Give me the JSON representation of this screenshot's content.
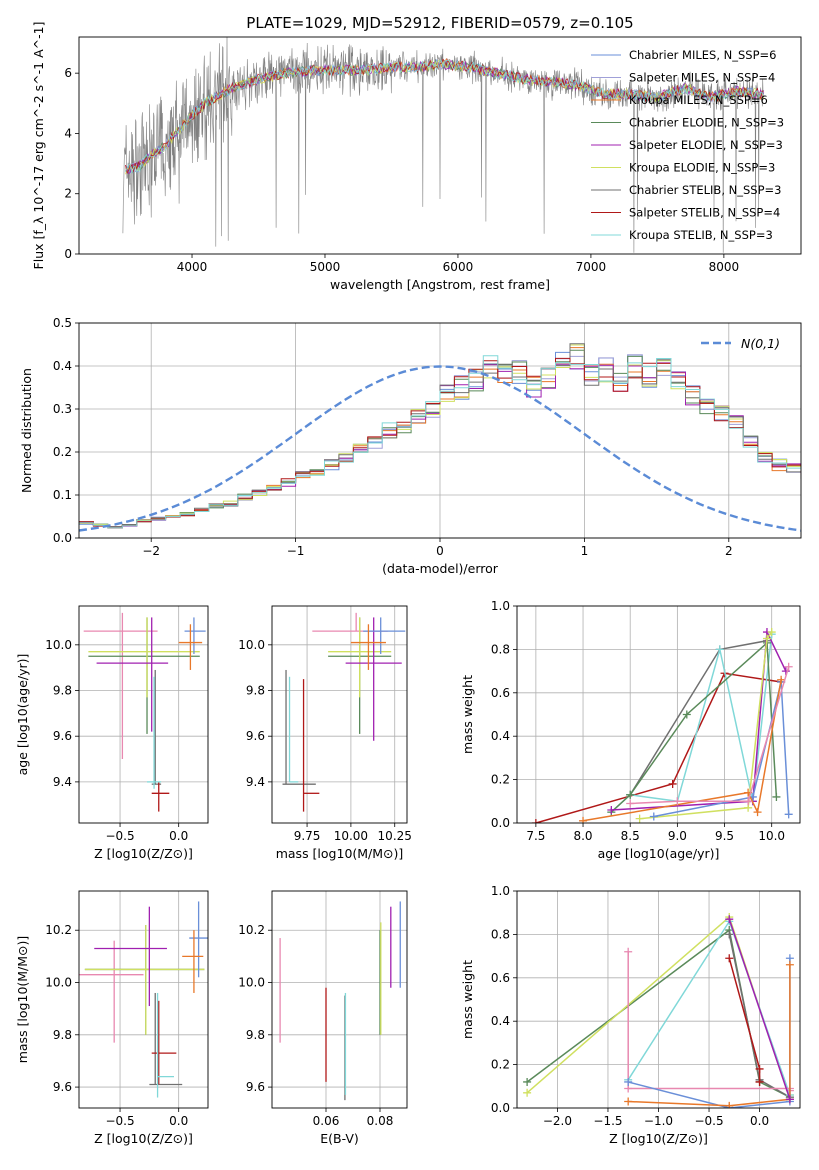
{
  "figure_title": "PLATE=1029, MJD=52912, FIBERID=0579, z=0.105",
  "colors": {
    "chabrier_miles": "#6a8fd8",
    "salpeter_miles": "#a0a0d8",
    "kroupa_miles": "#e8782a",
    "chabrier_elodie": "#5a8a5a",
    "salpeter_elodie": "#a020b0",
    "kroupa_elodie": "#d0e060",
    "chabrier_stelib": "#707070",
    "salpeter_stelib": "#b01818",
    "kroupa_stelib": "#80d8d8",
    "pink": "#e888b0",
    "normal": "#5b8bd6"
  },
  "chart_data": [
    {
      "id": "spectrum",
      "type": "line",
      "xlabel": "wavelength [Angstrom, rest frame]",
      "ylabel": "Flux [f_λ 10^-17 erg cm^-2 s^-1 A^-1]",
      "xlim": [
        3150,
        8580
      ],
      "ylim": [
        0,
        7.2
      ],
      "xticks": [
        4000,
        5000,
        6000,
        7000,
        8000
      ],
      "yticks": [
        0,
        2,
        4,
        6
      ],
      "grid": false,
      "legend_position": "right",
      "legend": [
        {
          "label": "Chabrier MILES, N_SSP=6",
          "color": "#6a8fd8"
        },
        {
          "label": "Salpeter MILES, N_SSP=4",
          "color": "#a0a0d8"
        },
        {
          "label": "Kroupa MILES, N_SSP=6",
          "color": "#e8782a"
        },
        {
          "label": "Chabrier ELODIE, N_SSP=3",
          "color": "#5a8a5a"
        },
        {
          "label": "Salpeter ELODIE, N_SSP=3",
          "color": "#a020b0"
        },
        {
          "label": "Kroupa ELODIE, N_SSP=3",
          "color": "#d0e060"
        },
        {
          "label": "Chabrier STELIB, N_SSP=3",
          "color": "#707070"
        },
        {
          "label": "Salpeter STELIB, N_SSP=4",
          "color": "#b01818"
        },
        {
          "label": "Kroupa STELIB, N_SSP=3",
          "color": "#80d8d8"
        }
      ],
      "model_continuum": {
        "x": [
          3500,
          3600,
          3700,
          3800,
          3900,
          4000,
          4100,
          4300,
          4500,
          4700,
          4900,
          5100,
          5300,
          5500,
          5700,
          5900,
          6100,
          6300,
          6500,
          6700,
          6900,
          7100,
          7300,
          7500,
          7700,
          7900,
          8100,
          8300
        ],
        "y": [
          2.8,
          2.9,
          3.3,
          3.6,
          4.1,
          4.6,
          5.0,
          5.5,
          5.8,
          6.0,
          6.1,
          6.1,
          6.1,
          6.2,
          6.2,
          6.3,
          6.2,
          6.0,
          5.8,
          5.7,
          5.6,
          5.3,
          5.3,
          5.2,
          5.5,
          5.2,
          5.4,
          5.3
        ]
      }
    },
    {
      "id": "residual_hist",
      "type": "histogram",
      "xlabel": "(data-model)/error",
      "ylabel": "Normed distribution",
      "xlim": [
        -2.5,
        2.5
      ],
      "ylim": [
        0,
        0.5
      ],
      "xticks": [
        -2,
        -1,
        0,
        1,
        2
      ],
      "yticks": [
        0.0,
        0.1,
        0.2,
        0.3,
        0.4,
        0.5
      ],
      "grid": true,
      "legend_position": "top-right",
      "legend": [
        {
          "label": "N(0,1)",
          "color": "#5b8bd6",
          "style": "dashed"
        }
      ],
      "bin_width": 0.1,
      "bin_start": -2.5,
      "base_values": [
        0.035,
        0.03,
        0.025,
        0.03,
        0.04,
        0.045,
        0.05,
        0.055,
        0.065,
        0.075,
        0.08,
        0.095,
        0.105,
        0.12,
        0.13,
        0.145,
        0.15,
        0.17,
        0.19,
        0.21,
        0.22,
        0.25,
        0.26,
        0.28,
        0.3,
        0.33,
        0.35,
        0.37,
        0.4,
        0.38,
        0.39,
        0.35,
        0.37,
        0.43,
        0.42,
        0.38,
        0.39,
        0.37,
        0.4,
        0.38,
        0.4,
        0.36,
        0.33,
        0.31,
        0.29,
        0.27,
        0.22,
        0.19,
        0.17,
        0.16,
        0.15,
        0.14,
        0.13,
        0.15,
        0.12,
        0.1,
        0.08,
        0.07,
        0.05,
        0.04,
        0.04,
        0.04
      ],
      "normal_curve": {
        "mean": 0,
        "sigma": 1
      }
    },
    {
      "id": "age_vs_Z",
      "type": "errorbar",
      "xlabel": "Z [log10(Z/Z⊙)]",
      "ylabel": "age  [log10(age/yr)]",
      "xlim": [
        -0.85,
        0.25
      ],
      "ylim": [
        9.22,
        10.17
      ],
      "xticks": [
        -0.5,
        0.0
      ],
      "yticks": [
        9.4,
        9.6,
        9.8,
        10.0
      ],
      "grid": true,
      "points": [
        {
          "color": "#707070",
          "x": -0.2,
          "y": 9.39,
          "xerr": [
            0.03,
            0.05
          ],
          "yerr": [
            0.0,
            0.5
          ]
        },
        {
          "color": "#b01818",
          "x": -0.17,
          "y": 9.35,
          "xerr": [
            0.06,
            0.09
          ],
          "yerr": [
            0.08,
            0.05
          ]
        },
        {
          "color": "#80d8d8",
          "x": -0.21,
          "y": 9.4,
          "xerr": [
            0.06,
            0.06
          ],
          "yerr": [
            0.03,
            0.46
          ]
        },
        {
          "color": "#e888b0",
          "x": -0.48,
          "y": 10.06,
          "xerr": [
            0.33,
            0.3
          ],
          "yerr": [
            0.56,
            0.08
          ]
        },
        {
          "color": "#5a8a5a",
          "x": -0.27,
          "y": 9.95,
          "xerr": [
            0.5,
            0.45
          ],
          "yerr": [
            0.34,
            0.17
          ]
        },
        {
          "color": "#d0e060",
          "x": -0.27,
          "y": 9.97,
          "xerr": [
            0.5,
            0.45
          ],
          "yerr": [
            0.2,
            0.15
          ]
        },
        {
          "color": "#a020b0",
          "x": -0.23,
          "y": 9.92,
          "xerr": [
            0.47,
            0.14
          ],
          "yerr": [
            0.3,
            0.2
          ]
        },
        {
          "color": "#6a8fd8",
          "x": 0.13,
          "y": 10.06,
          "xerr": [
            0.08,
            0.1
          ],
          "yerr": [
            0.1,
            0.06
          ]
        },
        {
          "color": "#e8782a",
          "x": 0.1,
          "y": 10.01,
          "xerr": [
            0.1,
            0.1
          ],
          "yerr": [
            0.12,
            0.08
          ]
        }
      ]
    },
    {
      "id": "age_vs_mass",
      "type": "errorbar",
      "xlabel": "mass [log10(M/M⊙)]",
      "ylabel": "",
      "xlim": [
        9.55,
        10.32
      ],
      "ylim": [
        9.22,
        10.17
      ],
      "xticks": [
        9.75,
        10.0,
        10.25
      ],
      "yticks": [
        9.4,
        9.6,
        9.8,
        10.0
      ],
      "grid": true,
      "points": [
        {
          "color": "#707070",
          "x": 9.63,
          "y": 9.39,
          "xerr": [
            0.02,
            0.17
          ],
          "yerr": [
            0.0,
            0.5
          ]
        },
        {
          "color": "#b01818",
          "x": 9.73,
          "y": 9.35,
          "xerr": [
            0.0,
            0.09
          ],
          "yerr": [
            0.08,
            0.5
          ]
        },
        {
          "color": "#80d8d8",
          "x": 9.65,
          "y": 9.4,
          "xerr": [
            0.0,
            0.05
          ],
          "yerr": [
            0.0,
            0.46
          ]
        },
        {
          "color": "#e888b0",
          "x": 10.03,
          "y": 10.06,
          "xerr": [
            0.25,
            0.18
          ],
          "yerr": [
            0.0,
            0.08
          ]
        },
        {
          "color": "#5a8a5a",
          "x": 10.05,
          "y": 9.95,
          "xerr": [
            0.18,
            0.18
          ],
          "yerr": [
            0.34,
            0.17
          ]
        },
        {
          "color": "#d0e060",
          "x": 10.05,
          "y": 9.97,
          "xerr": [
            0.18,
            0.18
          ],
          "yerr": [
            0.2,
            0.15
          ]
        },
        {
          "color": "#a020b0",
          "x": 10.13,
          "y": 9.92,
          "xerr": [
            0.16,
            0.16
          ],
          "yerr": [
            0.34,
            0.2
          ]
        },
        {
          "color": "#6a8fd8",
          "x": 10.17,
          "y": 10.06,
          "xerr": [
            0.1,
            0.14
          ],
          "yerr": [
            0.1,
            0.06
          ]
        },
        {
          "color": "#e8782a",
          "x": 10.1,
          "y": 10.01,
          "xerr": [
            0.1,
            0.1
          ],
          "yerr": [
            0.12,
            0.08
          ]
        }
      ]
    },
    {
      "id": "weight_vs_age",
      "type": "line",
      "xlabel": "age  [log10(age/yr)]",
      "ylabel": "mass weight",
      "xlim": [
        7.3,
        10.3
      ],
      "ylim": [
        0,
        1
      ],
      "xticks": [
        7.5,
        8.0,
        8.5,
        9.0,
        9.5,
        10.0
      ],
      "yticks": [
        0.0,
        0.2,
        0.4,
        0.6,
        0.8,
        1.0
      ],
      "grid": true,
      "series": [
        {
          "color": "#707070",
          "x": [
            8.5,
            9.45,
            9.95
          ],
          "y": [
            0.13,
            0.8,
            0.84
          ]
        },
        {
          "color": "#b01818",
          "x": [
            7.5,
            8.95,
            9.5,
            10.1
          ],
          "y": [
            0.0,
            0.18,
            0.69,
            0.65
          ]
        },
        {
          "color": "#80d8d8",
          "x": [
            8.3,
            8.5,
            9.0,
            9.45,
            9.8,
            10.0
          ],
          "y": [
            0.05,
            0.13,
            0.1,
            0.8,
            0.1,
            0.87
          ]
        },
        {
          "color": "#5a8a5a",
          "x": [
            8.3,
            8.5,
            9.1,
            9.95,
            10.05
          ],
          "y": [
            0.05,
            0.13,
            0.5,
            0.83,
            0.12
          ]
        },
        {
          "color": "#a020b0",
          "x": [
            8.3,
            9.8,
            9.95,
            10.15
          ],
          "y": [
            0.06,
            0.1,
            0.88,
            0.7
          ]
        },
        {
          "color": "#d0e060",
          "x": [
            8.6,
            9.75,
            9.95,
            10.0
          ],
          "y": [
            0.02,
            0.07,
            0.85,
            0.88
          ]
        },
        {
          "color": "#6a8fd8",
          "x": [
            8.75,
            9.8,
            10.1,
            10.18
          ],
          "y": [
            0.03,
            0.12,
            0.65,
            0.04
          ]
        },
        {
          "color": "#e8782a",
          "x": [
            8.0,
            9.75,
            9.85,
            10.1
          ],
          "y": [
            0.01,
            0.14,
            0.05,
            0.66
          ]
        },
        {
          "color": "#e888b0",
          "x": [
            8.5,
            9.0,
            9.75,
            10.18
          ],
          "y": [
            0.09,
            0.1,
            0.1,
            0.72
          ]
        }
      ]
    },
    {
      "id": "mass_vs_Z",
      "type": "errorbar",
      "xlabel": "Z [log10(Z/Z⊙)]",
      "ylabel": "mass [log10(M/M⊙)]",
      "xlim": [
        -0.85,
        0.25
      ],
      "ylim": [
        9.52,
        10.35
      ],
      "xticks": [
        -0.5,
        0.0
      ],
      "yticks": [
        9.6,
        9.8,
        10.0,
        10.2
      ],
      "grid": true,
      "points": [
        {
          "color": "#707070",
          "x": -0.2,
          "y": 9.61,
          "xerr": [
            0.05,
            0.23
          ],
          "yerr": [
            0.0,
            0.35
          ]
        },
        {
          "color": "#b01818",
          "x": -0.17,
          "y": 9.73,
          "xerr": [
            0.06,
            0.15
          ],
          "yerr": [
            0.12,
            0.2
          ]
        },
        {
          "color": "#80d8d8",
          "x": -0.18,
          "y": 9.64,
          "xerr": [
            0.0,
            0.14
          ],
          "yerr": [
            0.08,
            0.32
          ]
        },
        {
          "color": "#e888b0",
          "x": -0.55,
          "y": 10.03,
          "xerr": [
            0.33,
            0.25
          ],
          "yerr": [
            0.26,
            0.13
          ]
        },
        {
          "color": "#5a8a5a",
          "x": -0.28,
          "y": 10.05,
          "xerr": [
            0.52,
            0.5
          ],
          "yerr": [
            0.25,
            0.17
          ]
        },
        {
          "color": "#d0e060",
          "x": -0.28,
          "y": 10.05,
          "xerr": [
            0.52,
            0.5
          ],
          "yerr": [
            0.25,
            0.17
          ]
        },
        {
          "color": "#a020b0",
          "x": -0.25,
          "y": 10.13,
          "xerr": [
            0.47,
            0.15
          ],
          "yerr": [
            0.22,
            0.16
          ]
        },
        {
          "color": "#6a8fd8",
          "x": 0.17,
          "y": 10.17,
          "xerr": [
            0.08,
            0.08
          ],
          "yerr": [
            0.15,
            0.14
          ]
        },
        {
          "color": "#e8782a",
          "x": 0.13,
          "y": 10.1,
          "xerr": [
            0.1,
            0.08
          ],
          "yerr": [
            0.14,
            0.1
          ]
        }
      ]
    },
    {
      "id": "mass_vs_ebv",
      "type": "errorbar",
      "xlabel": "E(B-V)",
      "ylabel": "",
      "xlim": [
        0.04,
        0.09
      ],
      "ylim": [
        9.52,
        10.35
      ],
      "xticks": [
        0.06,
        0.08
      ],
      "yticks": [
        9.6,
        9.8,
        10.0,
        10.2
      ],
      "grid": true,
      "points": [
        {
          "color": "#e888b0",
          "x": 0.043,
          "y": 10.0,
          "yerr": [
            0.23,
            0.17
          ]
        },
        {
          "color": "#b01818",
          "x": 0.06,
          "y": 9.8,
          "yerr": [
            0.18,
            0.18
          ]
        },
        {
          "color": "#707070",
          "x": 0.067,
          "y": 9.75,
          "yerr": [
            0.2,
            0.2
          ]
        },
        {
          "color": "#80d8d8",
          "x": 0.0672,
          "y": 9.75,
          "yerr": [
            0.18,
            0.21
          ]
        },
        {
          "color": "#5a8a5a",
          "x": 0.08,
          "y": 10.0,
          "yerr": [
            0.2,
            0.2
          ]
        },
        {
          "color": "#d0e060",
          "x": 0.0803,
          "y": 10.0,
          "yerr": [
            0.2,
            0.23
          ]
        },
        {
          "color": "#a020b0",
          "x": 0.084,
          "y": 10.13,
          "yerr": [
            0.15,
            0.16
          ]
        },
        {
          "color": "#6a8fd8",
          "x": 0.0875,
          "y": 10.15,
          "yerr": [
            0.17,
            0.16
          ]
        }
      ]
    },
    {
      "id": "weight_vs_Z",
      "type": "line",
      "xlabel": "Z [log10(Z/Z⊙)]",
      "ylabel": "mass weight",
      "xlim": [
        -2.4,
        0.4
      ],
      "ylim": [
        0,
        1
      ],
      "xticks": [
        -2.0,
        -1.5,
        -1.0,
        -0.5,
        0.0
      ],
      "yticks": [
        0.0,
        0.2,
        0.4,
        0.6,
        0.8,
        1.0
      ],
      "grid": true,
      "series": [
        {
          "color": "#5a8a5a",
          "x": [
            -2.3,
            -0.3,
            0.0,
            0.3
          ],
          "y": [
            0.12,
            0.82,
            0.12,
            0.05
          ]
        },
        {
          "color": "#d0e060",
          "x": [
            -2.3,
            -0.3,
            0.3,
            0.3
          ],
          "y": [
            0.07,
            0.88,
            0.04,
            0.06
          ]
        },
        {
          "color": "#707070",
          "x": [
            -0.3,
            0.0,
            0.3
          ],
          "y": [
            0.8,
            0.13,
            0.05
          ]
        },
        {
          "color": "#b01818",
          "x": [
            -0.3,
            0.0,
            0.0
          ],
          "y": [
            0.69,
            0.18,
            0.12
          ]
        },
        {
          "color": "#80d8d8",
          "x": [
            -1.3,
            -0.3,
            0.3
          ],
          "y": [
            0.13,
            0.86,
            0.06
          ]
        },
        {
          "color": "#e888b0",
          "x": [
            -1.3,
            -1.3,
            0.3,
            0.3
          ],
          "y": [
            0.72,
            0.09,
            0.09,
            0.08
          ]
        },
        {
          "color": "#6a8fd8",
          "x": [
            -1.3,
            -0.3,
            0.3,
            0.3
          ],
          "y": [
            0.12,
            0.0,
            0.03,
            0.69
          ]
        },
        {
          "color": "#e8782a",
          "x": [
            -1.3,
            -0.3,
            0.3,
            0.3
          ],
          "y": [
            0.03,
            0.01,
            0.04,
            0.66
          ]
        },
        {
          "color": "#a020b0",
          "x": [
            -0.3,
            0.3
          ],
          "y": [
            0.87,
            0.04
          ]
        }
      ]
    }
  ]
}
